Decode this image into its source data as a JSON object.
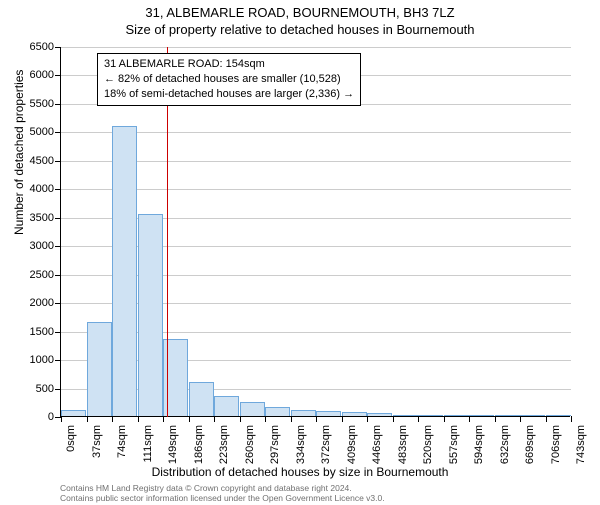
{
  "chart": {
    "type": "histogram",
    "title_main": "31, ALBEMARLE ROAD, BOURNEMOUTH, BH3 7LZ",
    "title_sub": "Size of property relative to detached houses in Bournemouth",
    "y_axis_title": "Number of detached properties",
    "x_axis_title": "Distribution of detached houses by size in Bournemouth",
    "background_color": "#ffffff",
    "grid_color": "#cccccc",
    "bar_fill": "#cfe2f3",
    "bar_stroke": "#6fa8dc",
    "refline_color": "#cc0000",
    "ylim": [
      0,
      6500
    ],
    "ytick_step": 500,
    "y_ticks": [
      0,
      500,
      1000,
      1500,
      2000,
      2500,
      3000,
      3500,
      4000,
      4500,
      5000,
      5500,
      6000,
      6500
    ],
    "x_ticks": [
      "0sqm",
      "37sqm",
      "74sqm",
      "111sqm",
      "149sqm",
      "186sqm",
      "223sqm",
      "260sqm",
      "297sqm",
      "334sqm",
      "372sqm",
      "409sqm",
      "446sqm",
      "483sqm",
      "520sqm",
      "557sqm",
      "594sqm",
      "632sqm",
      "669sqm",
      "706sqm",
      "743sqm"
    ],
    "values": [
      100,
      1650,
      5100,
      3550,
      1350,
      600,
      350,
      240,
      150,
      110,
      80,
      70,
      50,
      15,
      8,
      8,
      5,
      5,
      3,
      3
    ],
    "refline_value_sqm": 154,
    "x_max_sqm": 743,
    "info_box": {
      "line1": "31 ALBEMARLE ROAD: 154sqm",
      "line2": "← 82% of detached houses are smaller (10,528)",
      "line3": "18% of semi-detached houses are larger (2,336) →"
    },
    "attribution": {
      "line1": "Contains HM Land Registry data © Crown copyright and database right 2024.",
      "line2": "Contains public sector information licensed under the Open Government Licence v3.0."
    },
    "title_fontsize": 13,
    "axis_label_fontsize": 12,
    "tick_fontsize": 11
  }
}
